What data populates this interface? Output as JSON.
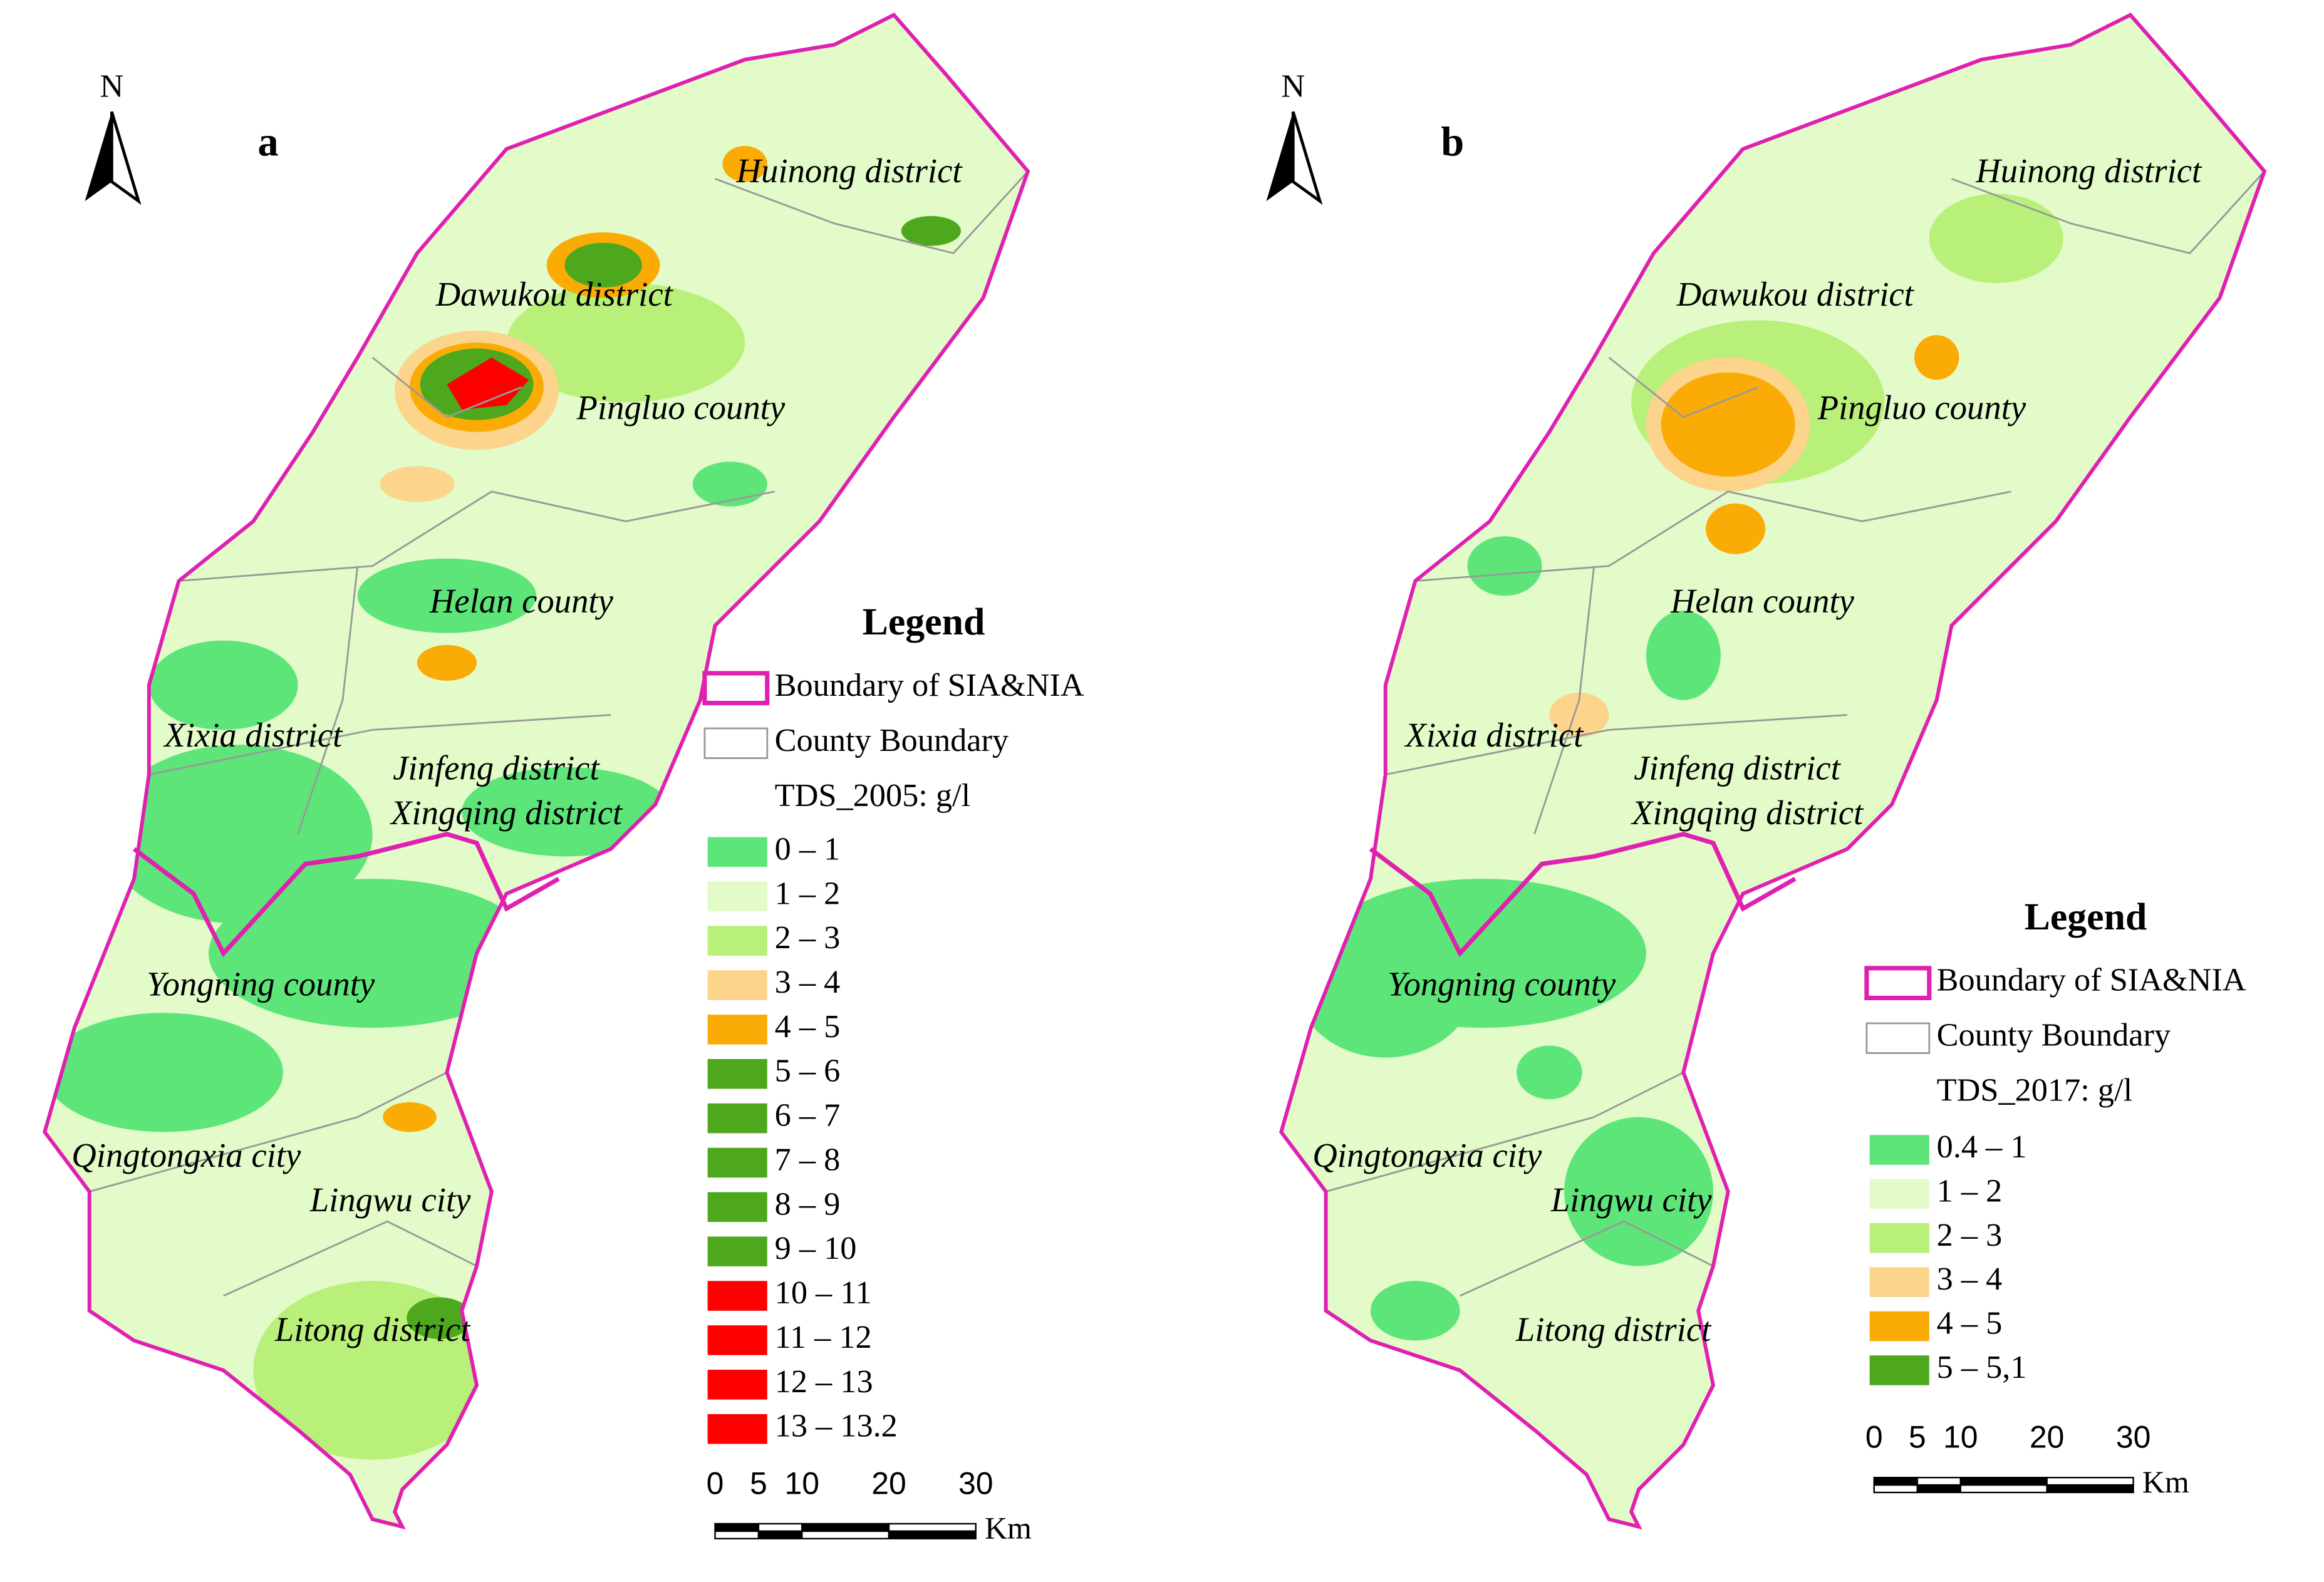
{
  "panels": [
    {
      "letter": "a",
      "north": "N",
      "places": [
        "Huinong district",
        "Dawukou district",
        "Pingluo county",
        "Helan county",
        "Xixia district",
        "Jinfeng district",
        "Xingqing district",
        "Yongning county",
        "Qingtongxia city",
        "Lingwu city",
        "Litong district"
      ],
      "legend": {
        "title": "Legend",
        "boundary": "Boundary of SIA&NIA",
        "county": "County Boundary",
        "field": "TDS_2005: g/l",
        "boundary_color": "#e020b0",
        "county_color": "#999999",
        "classes": [
          {
            "label": "0 – 1",
            "color": "#5de57a"
          },
          {
            "label": "1 – 2",
            "color": "#e2fbc9"
          },
          {
            "label": "2 – 3",
            "color": "#b8f07a"
          },
          {
            "label": "3 – 4",
            "color": "#fcd48c"
          },
          {
            "label": "4 – 5",
            "color": "#fbab06"
          },
          {
            "label": "5 – 6",
            "color": "#4da81e"
          },
          {
            "label": "6 – 7",
            "color": "#4da81e"
          },
          {
            "label": "7 – 8",
            "color": "#4da81e"
          },
          {
            "label": "8 – 9",
            "color": "#4da81e"
          },
          {
            "label": "9 – 10",
            "color": "#4da81e"
          },
          {
            "label": "10 – 11",
            "color": "#ff0000"
          },
          {
            "label": "11 – 12",
            "color": "#ff0000"
          },
          {
            "label": "12 – 13",
            "color": "#ff0000"
          },
          {
            "label": "13 – 13.2",
            "color": "#ff0000"
          }
        ]
      },
      "scale": {
        "ticks": [
          0,
          5,
          10,
          20,
          30
        ],
        "unit": "Km"
      }
    },
    {
      "letter": "b",
      "north": "N",
      "places": [
        "Huinong district",
        "Dawukou district",
        "Pingluo county",
        "Helan county",
        "Xixia district",
        "Jinfeng district",
        "Xingqing district",
        "Yongning county",
        "Qingtongxia city",
        "Lingwu city",
        "Litong district"
      ],
      "legend": {
        "title": "Legend",
        "boundary": "Boundary of SIA&NIA",
        "county": "County Boundary",
        "field": "TDS_2017: g/l",
        "boundary_color": "#e020b0",
        "county_color": "#999999",
        "classes": [
          {
            "label": "0.4 – 1",
            "color": "#5de57a"
          },
          {
            "label": "1 – 2",
            "color": "#e2fbc9"
          },
          {
            "label": "2 – 3",
            "color": "#b8f07a"
          },
          {
            "label": "3 – 4",
            "color": "#fcd48c"
          },
          {
            "label": "4 – 5",
            "color": "#fbab06"
          },
          {
            "label": "5 – 5,1",
            "color": "#4da81e"
          }
        ]
      },
      "scale": {
        "ticks": [
          0,
          5,
          10,
          20,
          30
        ],
        "unit": "Km"
      }
    }
  ]
}
